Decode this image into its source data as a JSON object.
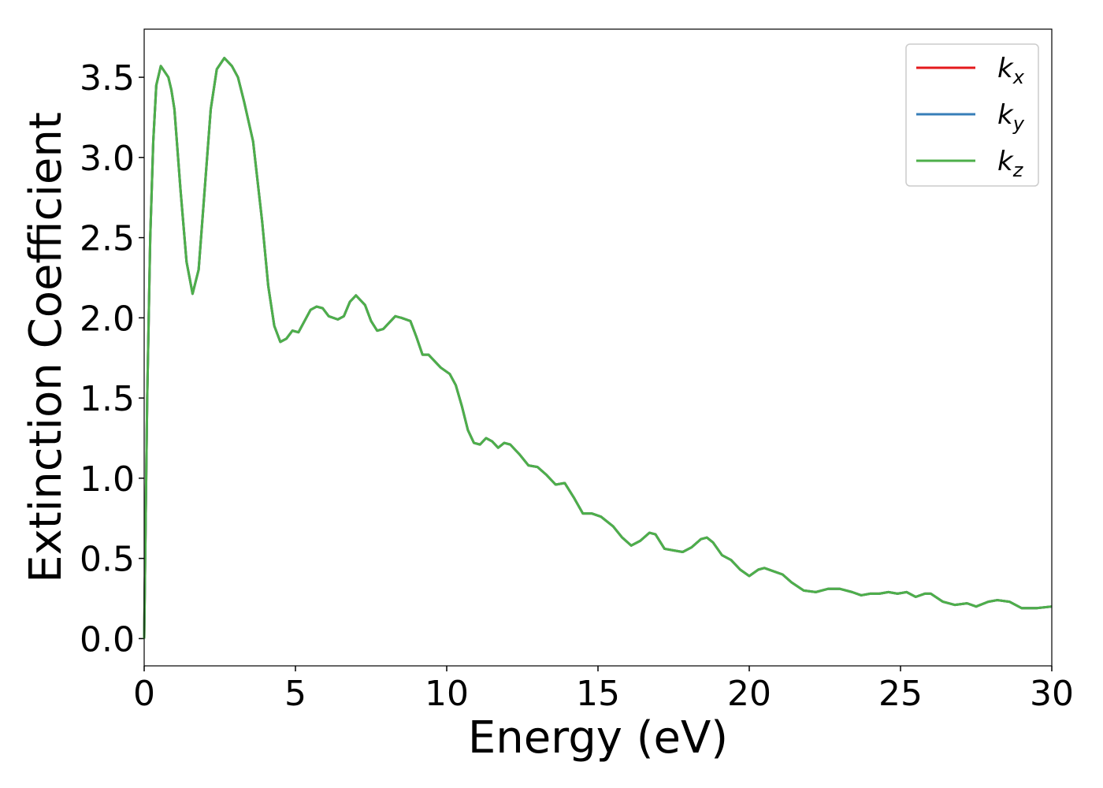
{
  "chart_data": {
    "type": "line",
    "xlabel": "Energy (eV)",
    "ylabel": "Extinction Coefficient",
    "x": [
      0,
      0.1,
      0.2,
      0.3,
      0.4,
      0.55,
      0.8,
      0.9,
      1.0,
      1.2,
      1.4,
      1.6,
      1.8,
      2.0,
      2.2,
      2.4,
      2.65,
      2.9,
      3.1,
      3.3,
      3.6,
      3.9,
      4.1,
      4.3,
      4.5,
      4.7,
      4.9,
      5.1,
      5.3,
      5.5,
      5.7,
      5.9,
      6.1,
      6.4,
      6.6,
      6.8,
      7.0,
      7.3,
      7.5,
      7.7,
      7.9,
      8.1,
      8.3,
      8.5,
      8.8,
      9.0,
      9.2,
      9.4,
      9.6,
      9.8,
      10.1,
      10.3,
      10.5,
      10.7,
      10.9,
      11.1,
      11.3,
      11.5,
      11.7,
      11.9,
      12.1,
      12.4,
      12.7,
      13.0,
      13.3,
      13.6,
      13.9,
      14.2,
      14.5,
      14.8,
      15.1,
      15.5,
      15.8,
      16.1,
      16.4,
      16.7,
      16.9,
      17.2,
      17.5,
      17.8,
      18.1,
      18.4,
      18.6,
      18.8,
      19.1,
      19.4,
      19.7,
      20.0,
      20.3,
      20.5,
      20.8,
      21.1,
      21.4,
      21.8,
      22.2,
      22.6,
      23.0,
      23.4,
      23.7,
      24.0,
      24.3,
      24.6,
      24.9,
      25.2,
      25.5,
      25.8,
      26.0,
      26.4,
      26.8,
      27.2,
      27.5,
      27.9,
      28.2,
      28.6,
      29.0,
      29.5,
      30.0
    ],
    "series": [
      {
        "name": "kx",
        "color": "#e41a1c",
        "values": [
          0,
          1.5,
          2.5,
          3.1,
          3.45,
          3.57,
          3.5,
          3.42,
          3.3,
          2.8,
          2.35,
          2.15,
          2.3,
          2.8,
          3.3,
          3.55,
          3.62,
          3.57,
          3.5,
          3.35,
          3.1,
          2.6,
          2.2,
          1.95,
          1.85,
          1.87,
          1.92,
          1.91,
          1.98,
          2.05,
          2.07,
          2.06,
          2.01,
          1.99,
          2.01,
          2.1,
          2.14,
          2.08,
          1.98,
          1.92,
          1.93,
          1.97,
          2.01,
          2.0,
          1.98,
          1.88,
          1.77,
          1.77,
          1.73,
          1.69,
          1.65,
          1.58,
          1.45,
          1.3,
          1.22,
          1.21,
          1.25,
          1.23,
          1.19,
          1.22,
          1.21,
          1.15,
          1.08,
          1.07,
          1.02,
          0.96,
          0.97,
          0.88,
          0.78,
          0.78,
          0.76,
          0.7,
          0.63,
          0.58,
          0.61,
          0.66,
          0.65,
          0.56,
          0.55,
          0.54,
          0.57,
          0.62,
          0.63,
          0.6,
          0.52,
          0.49,
          0.43,
          0.39,
          0.43,
          0.44,
          0.42,
          0.4,
          0.35,
          0.3,
          0.29,
          0.31,
          0.31,
          0.29,
          0.27,
          0.28,
          0.28,
          0.29,
          0.28,
          0.29,
          0.26,
          0.28,
          0.28,
          0.23,
          0.21,
          0.22,
          0.2,
          0.23,
          0.24,
          0.23,
          0.19,
          0.19,
          0.2
        ]
      },
      {
        "name": "ky",
        "color": "#377eb8",
        "values": [
          0,
          1.5,
          2.5,
          3.1,
          3.45,
          3.57,
          3.5,
          3.42,
          3.3,
          2.8,
          2.35,
          2.15,
          2.3,
          2.8,
          3.3,
          3.55,
          3.62,
          3.57,
          3.5,
          3.35,
          3.1,
          2.6,
          2.2,
          1.95,
          1.85,
          1.87,
          1.92,
          1.91,
          1.98,
          2.05,
          2.07,
          2.06,
          2.01,
          1.99,
          2.01,
          2.1,
          2.14,
          2.08,
          1.98,
          1.92,
          1.93,
          1.97,
          2.01,
          2.0,
          1.98,
          1.88,
          1.77,
          1.77,
          1.73,
          1.69,
          1.65,
          1.58,
          1.45,
          1.3,
          1.22,
          1.21,
          1.25,
          1.23,
          1.19,
          1.22,
          1.21,
          1.15,
          1.08,
          1.07,
          1.02,
          0.96,
          0.97,
          0.88,
          0.78,
          0.78,
          0.76,
          0.7,
          0.63,
          0.58,
          0.61,
          0.66,
          0.65,
          0.56,
          0.55,
          0.54,
          0.57,
          0.62,
          0.63,
          0.6,
          0.52,
          0.49,
          0.43,
          0.39,
          0.43,
          0.44,
          0.42,
          0.4,
          0.35,
          0.3,
          0.29,
          0.31,
          0.31,
          0.29,
          0.27,
          0.28,
          0.28,
          0.29,
          0.28,
          0.29,
          0.26,
          0.28,
          0.28,
          0.23,
          0.21,
          0.22,
          0.2,
          0.23,
          0.24,
          0.23,
          0.19,
          0.19,
          0.2
        ]
      },
      {
        "name": "kz",
        "color": "#4daf4a",
        "values": [
          0,
          1.5,
          2.5,
          3.1,
          3.45,
          3.57,
          3.5,
          3.42,
          3.3,
          2.8,
          2.35,
          2.15,
          2.3,
          2.8,
          3.3,
          3.55,
          3.62,
          3.57,
          3.5,
          3.35,
          3.1,
          2.6,
          2.2,
          1.95,
          1.85,
          1.87,
          1.92,
          1.91,
          1.98,
          2.05,
          2.07,
          2.06,
          2.01,
          1.99,
          2.01,
          2.1,
          2.14,
          2.08,
          1.98,
          1.92,
          1.93,
          1.97,
          2.01,
          2.0,
          1.98,
          1.88,
          1.77,
          1.77,
          1.73,
          1.69,
          1.65,
          1.58,
          1.45,
          1.3,
          1.22,
          1.21,
          1.25,
          1.23,
          1.19,
          1.22,
          1.21,
          1.15,
          1.08,
          1.07,
          1.02,
          0.96,
          0.97,
          0.88,
          0.78,
          0.78,
          0.76,
          0.7,
          0.63,
          0.58,
          0.61,
          0.66,
          0.65,
          0.56,
          0.55,
          0.54,
          0.57,
          0.62,
          0.63,
          0.6,
          0.52,
          0.49,
          0.43,
          0.39,
          0.43,
          0.44,
          0.42,
          0.4,
          0.35,
          0.3,
          0.29,
          0.31,
          0.31,
          0.29,
          0.27,
          0.28,
          0.28,
          0.29,
          0.28,
          0.29,
          0.26,
          0.28,
          0.28,
          0.23,
          0.21,
          0.22,
          0.2,
          0.23,
          0.24,
          0.23,
          0.19,
          0.19,
          0.2
        ]
      }
    ],
    "xlim": [
      0,
      30
    ],
    "xticks": [
      0,
      5,
      10,
      15,
      20,
      25,
      30
    ],
    "ylim": [
      -0.17,
      3.8
    ],
    "yticks": [
      {
        "value": 0,
        "label": "0.0"
      },
      0.5,
      {
        "value": 1,
        "label": "1.0"
      },
      1.5,
      {
        "value": 2,
        "label": "2.0"
      },
      2.5,
      {
        "value": 3,
        "label": "3.0"
      },
      3.5
    ],
    "grid": false,
    "legend": "upper right"
  }
}
